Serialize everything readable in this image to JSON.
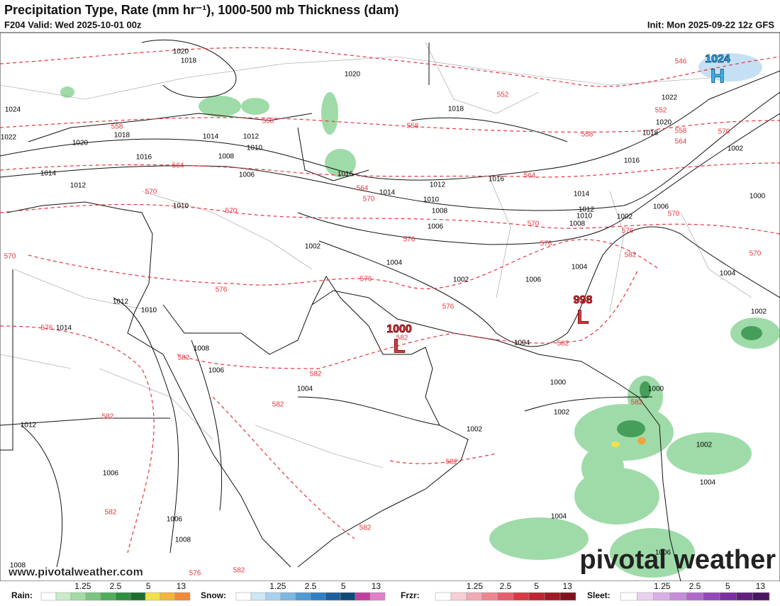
{
  "header": {
    "title": "Precipitation Type, Rate (mm hr⁻¹), 1000-500 mb Thickness (dam)",
    "valid": "F204 Valid: Wed 2025-10-01 00z",
    "init": "Init: Mon 2025-09-22 12z GFS"
  },
  "map": {
    "highs": [
      {
        "letter": "H",
        "value": 1024
      }
    ],
    "lows": [
      {
        "letter": "L",
        "value": 1000
      },
      {
        "letter": "L",
        "value": 998
      }
    ],
    "isobar_labels": [
      1020,
      1018,
      1020,
      1024,
      1022,
      1018,
      1020,
      1014,
      1012,
      1010,
      1008,
      1016,
      1006,
      1014,
      1012,
      1010,
      1016,
      1014,
      1012,
      1010,
      1008,
      1006,
      1016,
      1018,
      1014,
      1012,
      1010,
      1008,
      1002,
      1006,
      1018,
      1020,
      1022,
      1016,
      1002,
      1000,
      1004,
      1002,
      1002,
      1004,
      1002,
      1006,
      1004,
      1004,
      1012,
      1010,
      1014,
      1008,
      1006,
      1004,
      1000,
      1002,
      1000,
      1002,
      1002,
      1004,
      1012,
      1006,
      1006,
      1008,
      1004,
      1006,
      1008
    ],
    "thickness_labels": [
      546,
      552,
      552,
      558,
      558,
      558,
      558,
      558,
      564,
      570,
      564,
      564,
      564,
      570,
      570,
      570,
      570,
      570,
      576,
      576,
      576,
      582,
      570,
      570,
      576,
      576,
      576,
      576,
      582,
      582,
      582,
      582,
      582,
      582,
      582,
      582,
      582,
      582,
      576,
      582
    ]
  },
  "footer": {
    "website": "www.pivotalweather.com",
    "logo": "pivotal weather"
  },
  "legend": [
    {
      "name": "Rain:",
      "ticks": [
        1.25,
        2.5,
        5,
        13
      ]
    },
    {
      "name": "Snow:",
      "ticks": [
        1.25,
        2.5,
        5,
        13
      ]
    },
    {
      "name": "Frzr:",
      "ticks": [
        1.25,
        2.5,
        5,
        13
      ]
    },
    {
      "name": "Sleet:",
      "ticks": [
        1.25,
        2.5,
        5,
        13
      ]
    }
  ]
}
